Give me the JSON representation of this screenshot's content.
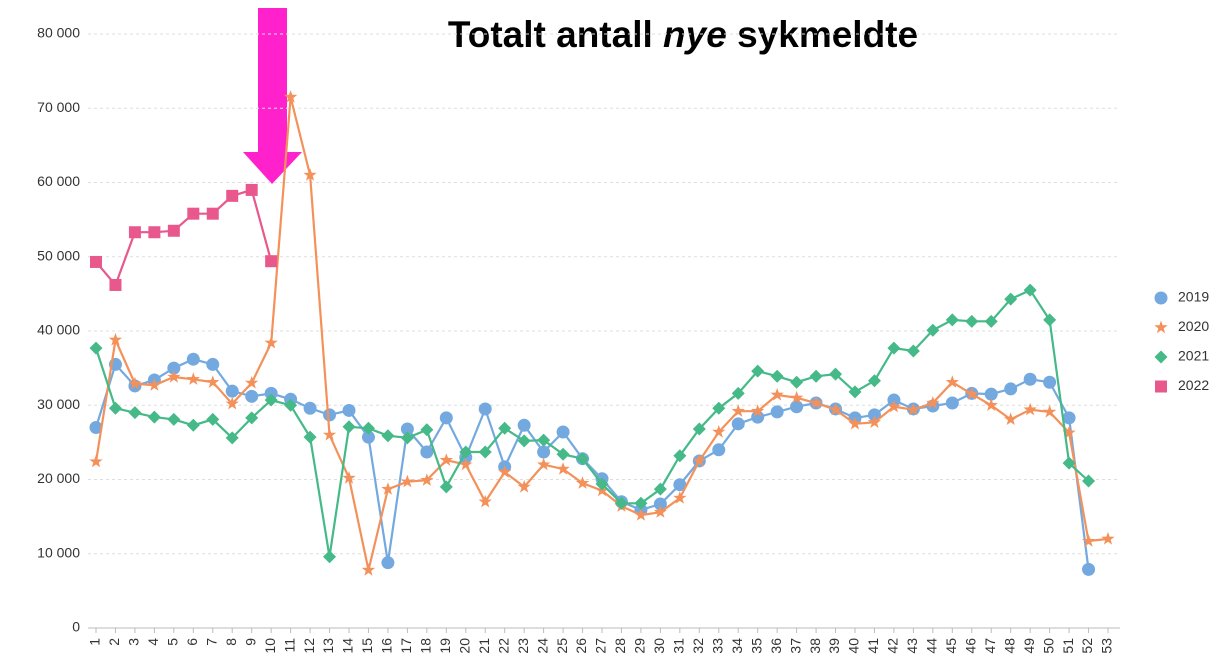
{
  "chart_data": {
    "type": "line",
    "title": [
      "Totalt antall",
      "nye",
      "sykmeldte"
    ],
    "categories": [
      "1",
      "2",
      "3",
      "4",
      "5",
      "6",
      "7",
      "8",
      "9",
      "10",
      "11",
      "12",
      "13",
      "14",
      "15",
      "16",
      "17",
      "18",
      "19",
      "20",
      "21",
      "22",
      "23",
      "24",
      "25",
      "26",
      "27",
      "28",
      "29",
      "30",
      "31",
      "32",
      "33",
      "34",
      "35",
      "36",
      "37",
      "38",
      "39",
      "40",
      "41",
      "42",
      "43",
      "44",
      "45",
      "46",
      "47",
      "48",
      "49",
      "50",
      "51",
      "52",
      "53"
    ],
    "ylim": [
      0,
      80000
    ],
    "yticks": [
      0,
      {
        "value": 10000,
        "label": "10 000"
      },
      {
        "value": 20000,
        "label": "20 000"
      },
      {
        "value": 30000,
        "label": "30 000"
      },
      {
        "value": 40000,
        "label": "40 000"
      },
      {
        "value": 50000,
        "label": "50 000"
      },
      {
        "value": 60000,
        "label": "60 000"
      },
      {
        "value": 70000,
        "label": "70 000"
      },
      {
        "value": 80000,
        "label": "80 000"
      }
    ],
    "grid": true,
    "legend": "right",
    "series": [
      {
        "name": "2019",
        "color": "#74a9e0",
        "marker": "circle",
        "values": [
          27000,
          35500,
          32600,
          33400,
          35000,
          36200,
          35500,
          31900,
          31200,
          31600,
          30800,
          29600,
          28700,
          29300,
          25700,
          8800,
          26800,
          23700,
          28300,
          23000,
          29500,
          21700,
          27300,
          23700,
          26400,
          22800,
          20100,
          17000,
          15900,
          16700,
          19300,
          22500,
          24000,
          27500,
          28400,
          29100,
          29800,
          30300,
          29500,
          28300,
          28700,
          30700,
          29500,
          29900,
          30300,
          31600,
          31500,
          32200,
          33500,
          33100,
          28300,
          7900,
          null
        ]
      },
      {
        "name": "2020",
        "color": "#f4915a",
        "marker": "star",
        "values": [
          22400,
          38800,
          32900,
          32700,
          33800,
          33500,
          33100,
          30200,
          33000,
          38400,
          71500,
          61000,
          26000,
          20200,
          7800,
          18700,
          19700,
          19900,
          22600,
          22000,
          17000,
          21000,
          19000,
          22000,
          21400,
          19500,
          18500,
          16400,
          15200,
          15600,
          17500,
          22500,
          26400,
          29200,
          29200,
          31400,
          31000,
          30300,
          29400,
          27500,
          27700,
          29800,
          29400,
          30300,
          33100,
          31500,
          30000,
          28100,
          29400,
          29100,
          26300,
          11700,
          12000
        ]
      },
      {
        "name": "2021",
        "color": "#45b987",
        "marker": "diamond",
        "values": [
          37700,
          29600,
          29000,
          28400,
          28100,
          27300,
          28100,
          25600,
          28300,
          30700,
          30000,
          25700,
          9600,
          27100,
          26900,
          25900,
          25600,
          26700,
          19000,
          23700,
          23700,
          26900,
          25200,
          25300,
          23400,
          22800,
          19400,
          16800,
          16800,
          18700,
          23200,
          26800,
          29600,
          31600,
          34600,
          33900,
          33100,
          33900,
          34200,
          31800,
          33300,
          37700,
          37300,
          40100,
          41500,
          41300,
          41300,
          44300,
          45500,
          41500,
          22200,
          19800,
          null
        ]
      },
      {
        "name": "2022",
        "color": "#e8588d",
        "marker": "square",
        "values": [
          49300,
          46200,
          53300,
          53300,
          53500,
          55800,
          55800,
          58200,
          59000,
          49400,
          null,
          null,
          null,
          null,
          null,
          null,
          null,
          null,
          null,
          null,
          null,
          null,
          null,
          null,
          null,
          null,
          null,
          null,
          null,
          null,
          null,
          null,
          null,
          null,
          null,
          null,
          null,
          null,
          null,
          null,
          null,
          null,
          null,
          null,
          null,
          null,
          null,
          null,
          null,
          null,
          null,
          null,
          null
        ]
      }
    ]
  }
}
